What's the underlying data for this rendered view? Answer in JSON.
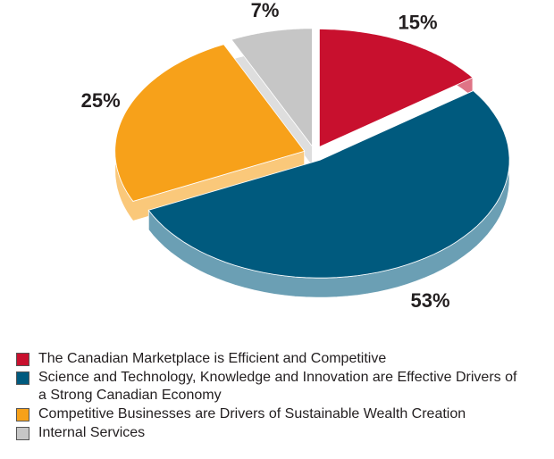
{
  "chart_data": {
    "type": "pie3d",
    "categories": [
      "The Canadian Marketplace is Efficient and Competitive",
      "Science and Technology, Knowledge and Innovation are Effective Drivers of a Strong Canadian Economy",
      "Competitive Businesses are Drivers of Sustainable Wealth Creation",
      "Internal Services"
    ],
    "values": [
      15,
      53,
      25,
      7
    ],
    "value_labels": [
      "15%",
      "53%",
      "25%",
      "7%"
    ],
    "colors": [
      "#c8102e",
      "#005a7e",
      "#f7a11a",
      "#c6c6c6"
    ]
  }
}
